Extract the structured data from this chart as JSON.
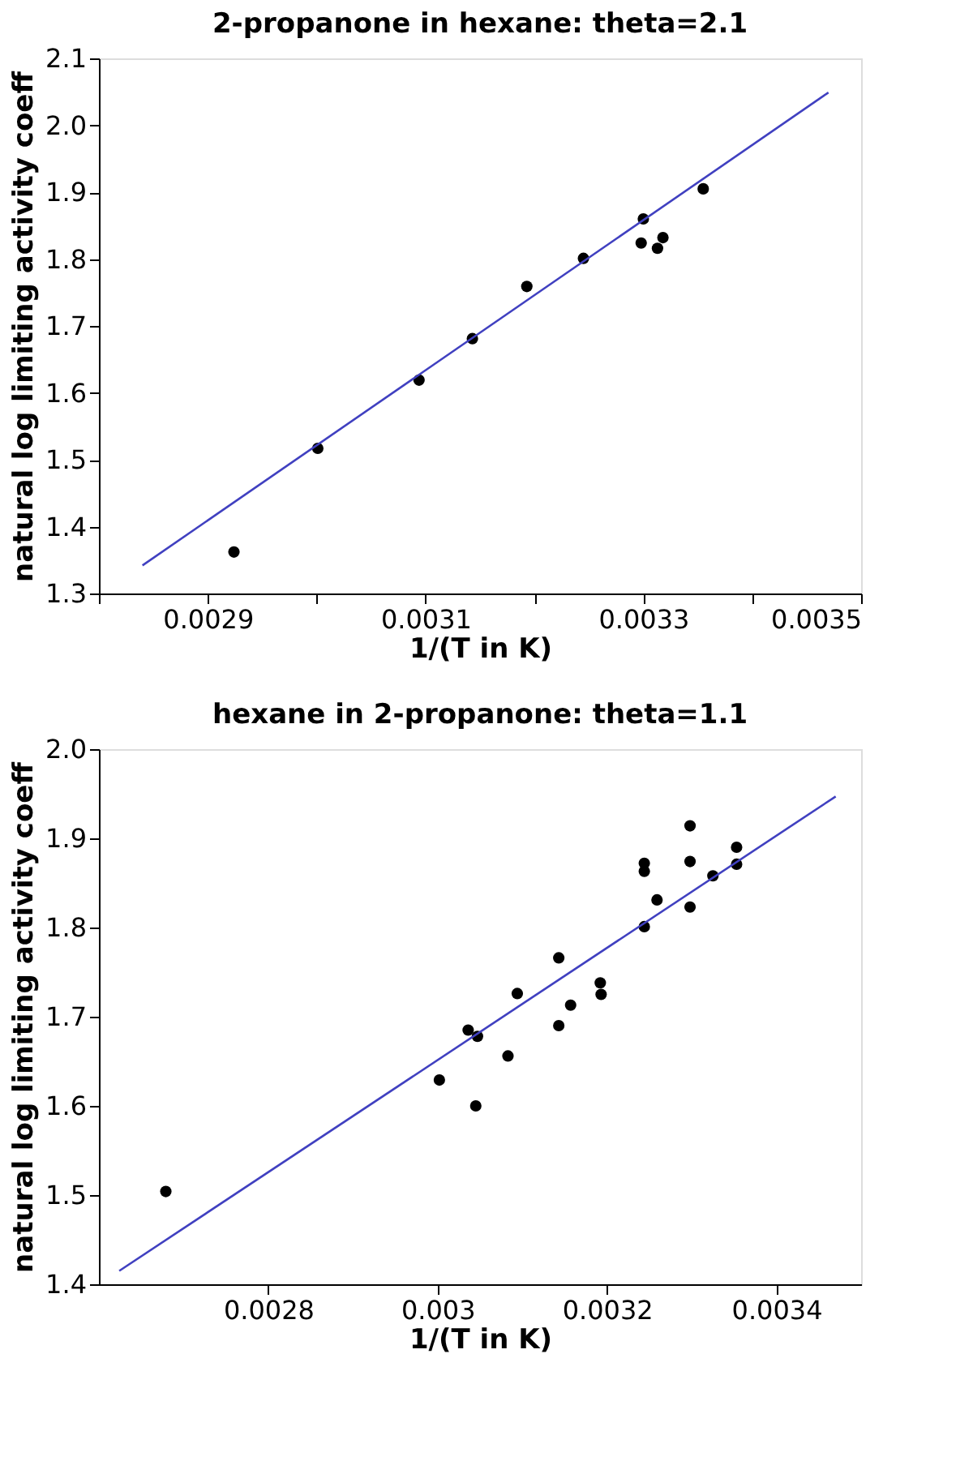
{
  "chart_data": [
    {
      "type": "scatter",
      "title": "2-propanone in hexane: theta=2.1",
      "xlabel": "1/(T in K)",
      "ylabel": "natural log limiting activity coeff",
      "xlim": [
        0.0028,
        0.0035
      ],
      "ylim": [
        1.3,
        2.1
      ],
      "xticks": [
        {
          "value": 0.0028,
          "label": null
        },
        0.0029,
        {
          "value": 0.003,
          "label": null
        },
        0.0031,
        {
          "value": 0.0032,
          "label": null
        },
        0.0033,
        {
          "value": 0.0034,
          "label": null
        },
        0.0035
      ],
      "yticks": [
        1.3,
        1.4,
        1.5,
        1.6,
        1.7,
        1.8,
        1.9,
        {
          "value": 2.0,
          "label": "2.0"
        },
        2.1
      ],
      "series": [
        {
          "color": "#000000",
          "marker": "circle",
          "x": [
            0.002924,
            0.003001,
            0.003094,
            0.003143,
            0.003193,
            0.003245,
            0.003298,
            0.0033,
            0.003313,
            0.003318,
            0.003355
          ],
          "values": [
            1.362,
            1.517,
            1.619,
            1.681,
            1.759,
            1.801,
            1.824,
            1.86,
            1.816,
            1.832,
            1.905
          ]
        },
        {
          "type": "line",
          "color": "#4040c0",
          "marker": "none",
          "line_style": "solid",
          "x": [
            0.00284,
            0.00347
          ],
          "values": [
            1.342,
            2.049
          ]
        }
      ]
    },
    {
      "type": "scatter",
      "title": "hexane in 2-propanone: theta=1.1",
      "xlabel": "1/(T in K)",
      "ylabel": "natural log limiting activity coeff",
      "xlim": [
        0.0026,
        0.0035
      ],
      "ylim": [
        1.4,
        2.0
      ],
      "xticks": [
        0.0028,
        0.003,
        0.0032,
        0.0034
      ],
      "yticks": [
        1.4,
        1.5,
        1.6,
        1.7,
        1.8,
        1.9,
        {
          "value": 2.0,
          "label": "2.0"
        }
      ],
      "series": [
        {
          "color": "#000000",
          "marker": "circle",
          "x": [
            0.002679,
            0.003002,
            0.003045,
            0.003036,
            0.003047,
            0.003083,
            0.003094,
            0.003143,
            0.003143,
            0.003157,
            0.003192,
            0.003193,
            0.003244,
            0.003244,
            0.003244,
            0.003259,
            0.003298,
            0.003298,
            0.003298,
            0.003325,
            0.003353,
            0.003353
          ],
          "values": [
            1.504,
            1.629,
            1.6,
            1.685,
            1.678,
            1.656,
            1.726,
            1.766,
            1.69,
            1.713,
            1.738,
            1.725,
            1.872,
            1.863,
            1.801,
            1.831,
            1.914,
            1.874,
            1.823,
            1.858,
            1.89,
            1.871
          ]
        },
        {
          "type": "line",
          "color": "#4040c0",
          "marker": "none",
          "line_style": "solid",
          "x": [
            0.002624,
            0.00347
          ],
          "values": [
            1.415,
            1.947
          ]
        }
      ]
    }
  ]
}
